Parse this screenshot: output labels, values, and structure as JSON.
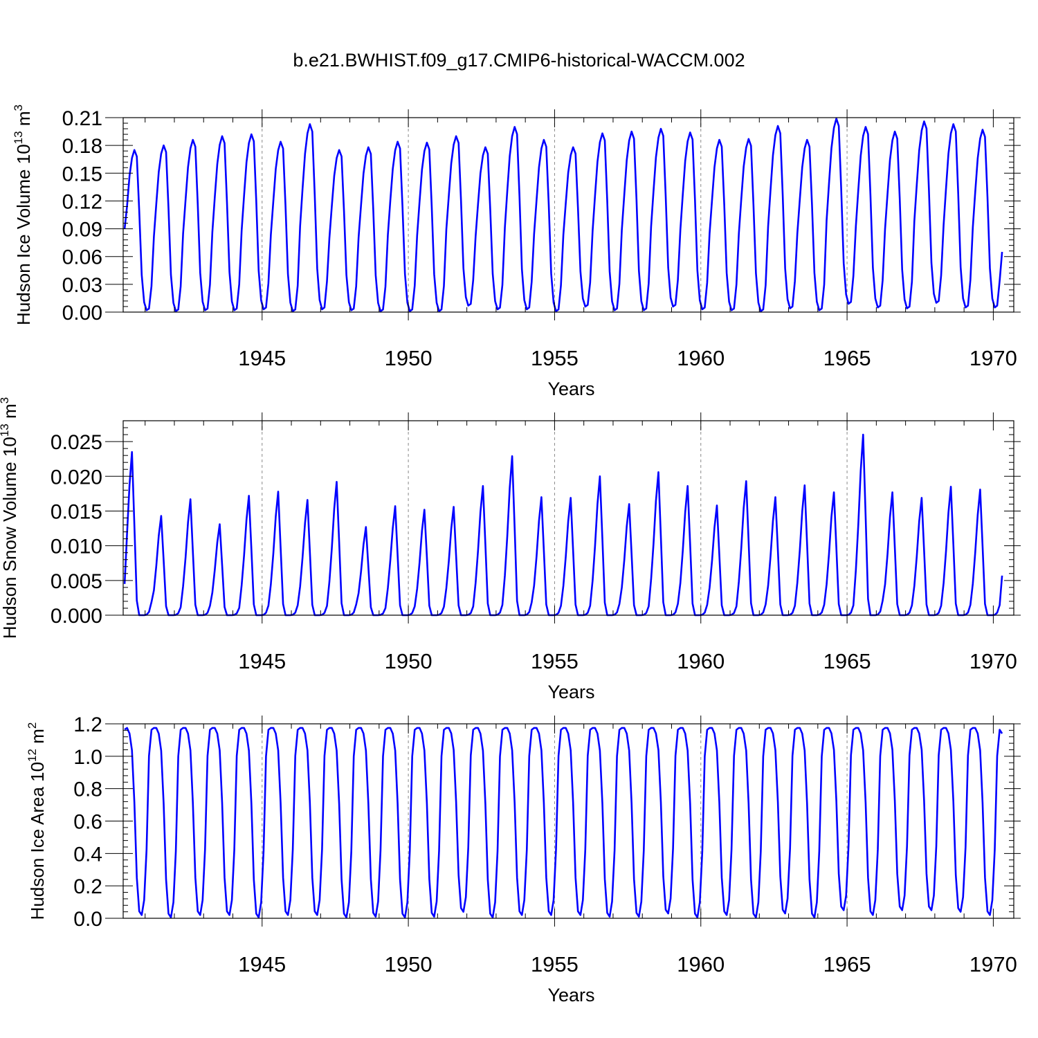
{
  "title": "b.e21.BWHIST.f09_g17.CMIP6-historical-WACCM.002",
  "colors": {
    "line": "#0000ff",
    "axis": "#000000",
    "refline": "#888888"
  },
  "chart_data": [
    {
      "type": "line",
      "name": "ice-volume",
      "ylabel_main": "Hudson Ice Volume 10",
      "ylabel_exp": "13",
      "ylabel_unit": " m",
      "ylabel_unit_exp": "3",
      "xlabel": "Years",
      "xlim": [
        1940.25,
        1970.7
      ],
      "ylim": [
        0.0,
        0.21
      ],
      "yticks": [
        0.0,
        0.03,
        0.06,
        0.09,
        0.12,
        0.15,
        0.18,
        0.21
      ],
      "ytick_labels": [
        "0.00",
        "0.03",
        "0.06",
        "0.09",
        "0.12",
        "0.15",
        "0.18",
        "0.21"
      ],
      "xticks": [
        1945,
        1950,
        1955,
        1960,
        1965,
        1970
      ],
      "xtick_labels": [
        "1945",
        "1950",
        "1955",
        "1960",
        "1965",
        "1970"
      ],
      "reflines": [
        1945,
        1950,
        1955,
        1960,
        1965
      ],
      "start_year": 1940.3,
      "peaks": [
        0.175,
        0.18,
        0.186,
        0.19,
        0.192,
        0.184,
        0.203,
        0.175,
        0.178,
        0.184,
        0.183,
        0.19,
        0.178,
        0.2,
        0.186,
        0.178,
        0.193,
        0.195,
        0.198,
        0.194,
        0.186,
        0.187,
        0.201,
        0.186,
        0.209,
        0.2,
        0.195,
        0.206,
        0.203,
        0.197
      ],
      "troughs": [
        0.002,
        0.001,
        0.002,
        0.002,
        0.003,
        0.001,
        0.003,
        0.002,
        0.001,
        0.001,
        0.001,
        0.007,
        0.003,
        0.003,
        0.001,
        0.006,
        0.002,
        0.002,
        0.006,
        0.003,
        0.002,
        0.001,
        0.004,
        0.002,
        0.009,
        0.005,
        0.004,
        0.01,
        0.005,
        0.005
      ],
      "end_value": 0.065,
      "start_value": 0.09
    },
    {
      "type": "line",
      "name": "snow-volume",
      "ylabel_main": "Hudson Snow Volume 10",
      "ylabel_exp": "13",
      "ylabel_unit": " m",
      "ylabel_unit_exp": "3",
      "xlabel": "Years",
      "xlim": [
        1940.25,
        1970.7
      ],
      "ylim": [
        0.0,
        0.028
      ],
      "yticks": [
        0.0,
        0.005,
        0.01,
        0.015,
        0.02,
        0.025
      ],
      "ytick_labels": [
        "0.000",
        "0.005",
        "0.010",
        "0.015",
        "0.020",
        "0.025"
      ],
      "xticks": [
        1945,
        1950,
        1955,
        1960,
        1965,
        1970
      ],
      "xtick_labels": [
        "1945",
        "1950",
        "1955",
        "1960",
        "1965",
        "1970"
      ],
      "reflines": [
        1945,
        1950,
        1955,
        1960,
        1965
      ],
      "start_year": 1940.3,
      "peaks": [
        0.0235,
        0.0143,
        0.0167,
        0.0131,
        0.0172,
        0.0178,
        0.0166,
        0.0192,
        0.0127,
        0.0157,
        0.0152,
        0.0156,
        0.0186,
        0.0229,
        0.017,
        0.0169,
        0.02,
        0.016,
        0.0206,
        0.0186,
        0.0158,
        0.0193,
        0.017,
        0.0187,
        0.0177,
        0.026,
        0.0177,
        0.0169,
        0.0185,
        0.0181
      ],
      "end_value": 0.0057,
      "start_value": 0.0045
    },
    {
      "type": "line",
      "name": "ice-area",
      "ylabel_main": "Hudson Ice Area 10",
      "ylabel_exp": "12",
      "ylabel_unit": " m",
      "ylabel_unit_exp": "2",
      "xlabel": "Years",
      "xlim": [
        1940.25,
        1970.7
      ],
      "ylim": [
        0.0,
        1.2
      ],
      "yticks": [
        0.0,
        0.2,
        0.4,
        0.6,
        0.8,
        1.0,
        1.2
      ],
      "ytick_labels": [
        "0.0",
        "0.2",
        "0.4",
        "0.6",
        "0.8",
        "1.0",
        "1.2"
      ],
      "xticks": [
        1945,
        1950,
        1955,
        1960,
        1965,
        1970
      ],
      "xtick_labels": [
        "1945",
        "1950",
        "1955",
        "1960",
        "1965",
        "1970"
      ],
      "reflines": [
        1945,
        1950,
        1955,
        1960,
        1965
      ],
      "start_year": 1940.3,
      "peak": 1.175,
      "troughs": [
        0.02,
        0.005,
        0.02,
        0.02,
        0.005,
        0.02,
        0.02,
        0.005,
        0.01,
        0.005,
        0.01,
        0.04,
        0.005,
        0.02,
        0.02,
        0.02,
        0.01,
        0.01,
        0.03,
        0.005,
        0.02,
        0.005,
        0.03,
        0.005,
        0.05,
        0.02,
        0.05,
        0.05,
        0.04,
        0.02
      ],
      "end_value": 1.14,
      "start_value": 1.165
    }
  ]
}
